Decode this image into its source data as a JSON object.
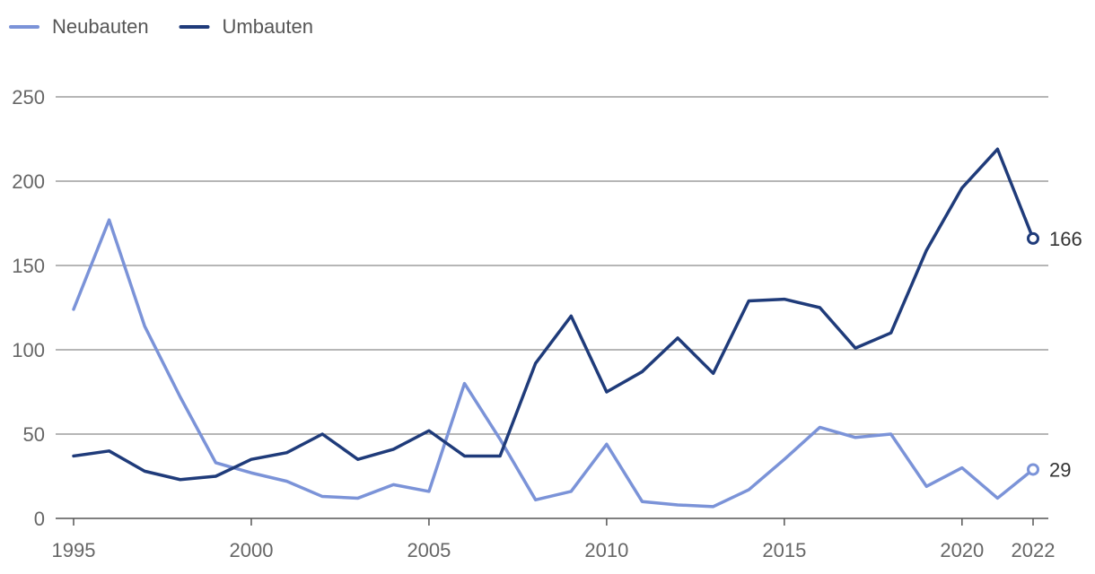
{
  "chart_data": {
    "type": "line",
    "title": "",
    "xlabel": "",
    "ylabel": "",
    "x": [
      1995,
      1996,
      1997,
      1998,
      1999,
      2000,
      2001,
      2002,
      2003,
      2004,
      2005,
      2006,
      2007,
      2008,
      2009,
      2010,
      2011,
      2012,
      2013,
      2014,
      2015,
      2016,
      2017,
      2018,
      2019,
      2020,
      2021,
      2022
    ],
    "series": [
      {
        "name": "Neubauten",
        "color": "#7b93d8",
        "values": [
          124,
          177,
          114,
          72,
          33,
          27,
          22,
          13,
          12,
          20,
          16,
          80,
          47,
          11,
          16,
          44,
          10,
          8,
          7,
          17,
          35,
          54,
          48,
          50,
          19,
          30,
          12,
          29
        ],
        "end_label": "29"
      },
      {
        "name": "Umbauten",
        "color": "#1f3b7a",
        "values": [
          37,
          40,
          28,
          23,
          25,
          35,
          39,
          50,
          35,
          41,
          52,
          37,
          37,
          92,
          120,
          75,
          87,
          107,
          86,
          129,
          130,
          125,
          101,
          110,
          159,
          196,
          219,
          166
        ],
        "end_label": "166"
      }
    ],
    "ylim": [
      0,
      250
    ],
    "yticks": [
      0,
      50,
      100,
      150,
      200,
      250
    ],
    "xticks": [
      1995,
      2000,
      2005,
      2010,
      2015,
      2020,
      2022
    ],
    "grid": true,
    "legend_position": "top-left"
  }
}
